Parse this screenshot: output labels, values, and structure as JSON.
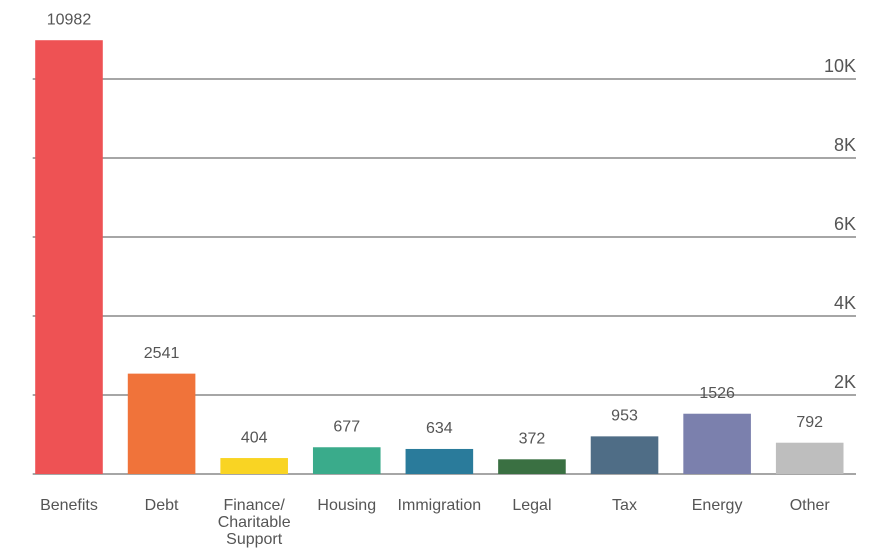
{
  "chart_data": {
    "type": "bar",
    "categories": [
      "Benefits",
      "Debt",
      "Finance/ Charitable Support",
      "Housing",
      "Immigration",
      "Legal",
      "Tax",
      "Energy",
      "Other"
    ],
    "values": [
      10982,
      2541,
      404,
      677,
      634,
      372,
      953,
      1526,
      792
    ],
    "colors": [
      "#ee5254",
      "#f0733a",
      "#f9d423",
      "#3aab8b",
      "#2a7b9b",
      "#3a7042",
      "#4f6d86",
      "#7b80ad",
      "#bebebe"
    ],
    "ylim": [
      0,
      12000
    ],
    "yticks": [
      {
        "value": 2000,
        "label": "2K"
      },
      {
        "value": 4000,
        "label": "4K"
      },
      {
        "value": 6000,
        "label": "6K"
      },
      {
        "value": 8000,
        "label": "8K"
      },
      {
        "value": 10000,
        "label": "10K"
      }
    ],
    "grid": true
  }
}
